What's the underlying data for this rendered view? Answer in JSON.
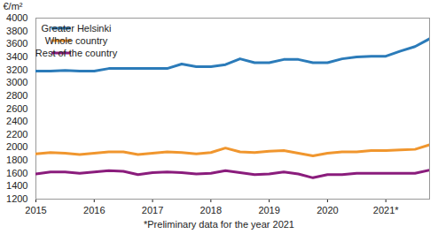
{
  "chart_data": {
    "type": "line",
    "ylabel": "€/m²",
    "xlabel": "*Preliminary data for the year 2021",
    "x": [
      2015,
      2015.25,
      2015.5,
      2015.75,
      2016,
      2016.25,
      2016.5,
      2016.75,
      2017,
      2017.25,
      2017.5,
      2017.75,
      2018,
      2018.25,
      2018.5,
      2018.75,
      2019,
      2019.25,
      2019.5,
      2019.75,
      2020,
      2020.25,
      2020.5,
      2020.75,
      2021,
      2021.25,
      2021.5,
      2021.75
    ],
    "series": [
      {
        "name": "Greater Helsinki",
        "color": "#2b7bb9",
        "values": [
          3180,
          3180,
          3190,
          3180,
          3180,
          3220,
          3220,
          3220,
          3220,
          3220,
          3290,
          3250,
          3250,
          3280,
          3370,
          3310,
          3310,
          3360,
          3360,
          3310,
          3310,
          3370,
          3400,
          3410,
          3410,
          3490,
          3560,
          3680
        ]
      },
      {
        "name": "Whole country",
        "color": "#f0962e",
        "values": [
          1900,
          1920,
          1910,
          1890,
          1910,
          1930,
          1930,
          1890,
          1910,
          1930,
          1920,
          1900,
          1920,
          1990,
          1930,
          1920,
          1940,
          1950,
          1910,
          1870,
          1910,
          1930,
          1930,
          1950,
          1950,
          1960,
          1970,
          2040
        ]
      },
      {
        "name": "Rest of the country",
        "color": "#8a1c7c",
        "values": [
          1590,
          1620,
          1620,
          1600,
          1620,
          1640,
          1630,
          1580,
          1610,
          1620,
          1610,
          1590,
          1600,
          1640,
          1610,
          1580,
          1590,
          1620,
          1590,
          1530,
          1580,
          1580,
          1600,
          1600,
          1600,
          1600,
          1600,
          1650
        ]
      }
    ],
    "xlim": [
      2015,
      2021.75
    ],
    "xticks": [
      2015,
      2016,
      2017,
      2018,
      2019,
      2020,
      {
        "value": 2021,
        "label": "2021*"
      }
    ],
    "ylim": [
      1200,
      4000
    ],
    "yticks": [
      1200,
      1400,
      1600,
      1800,
      2000,
      2200,
      2400,
      2600,
      2800,
      3000,
      3200,
      3400,
      3600,
      3800,
      4000
    ],
    "grid": false,
    "legend": "top-left"
  }
}
